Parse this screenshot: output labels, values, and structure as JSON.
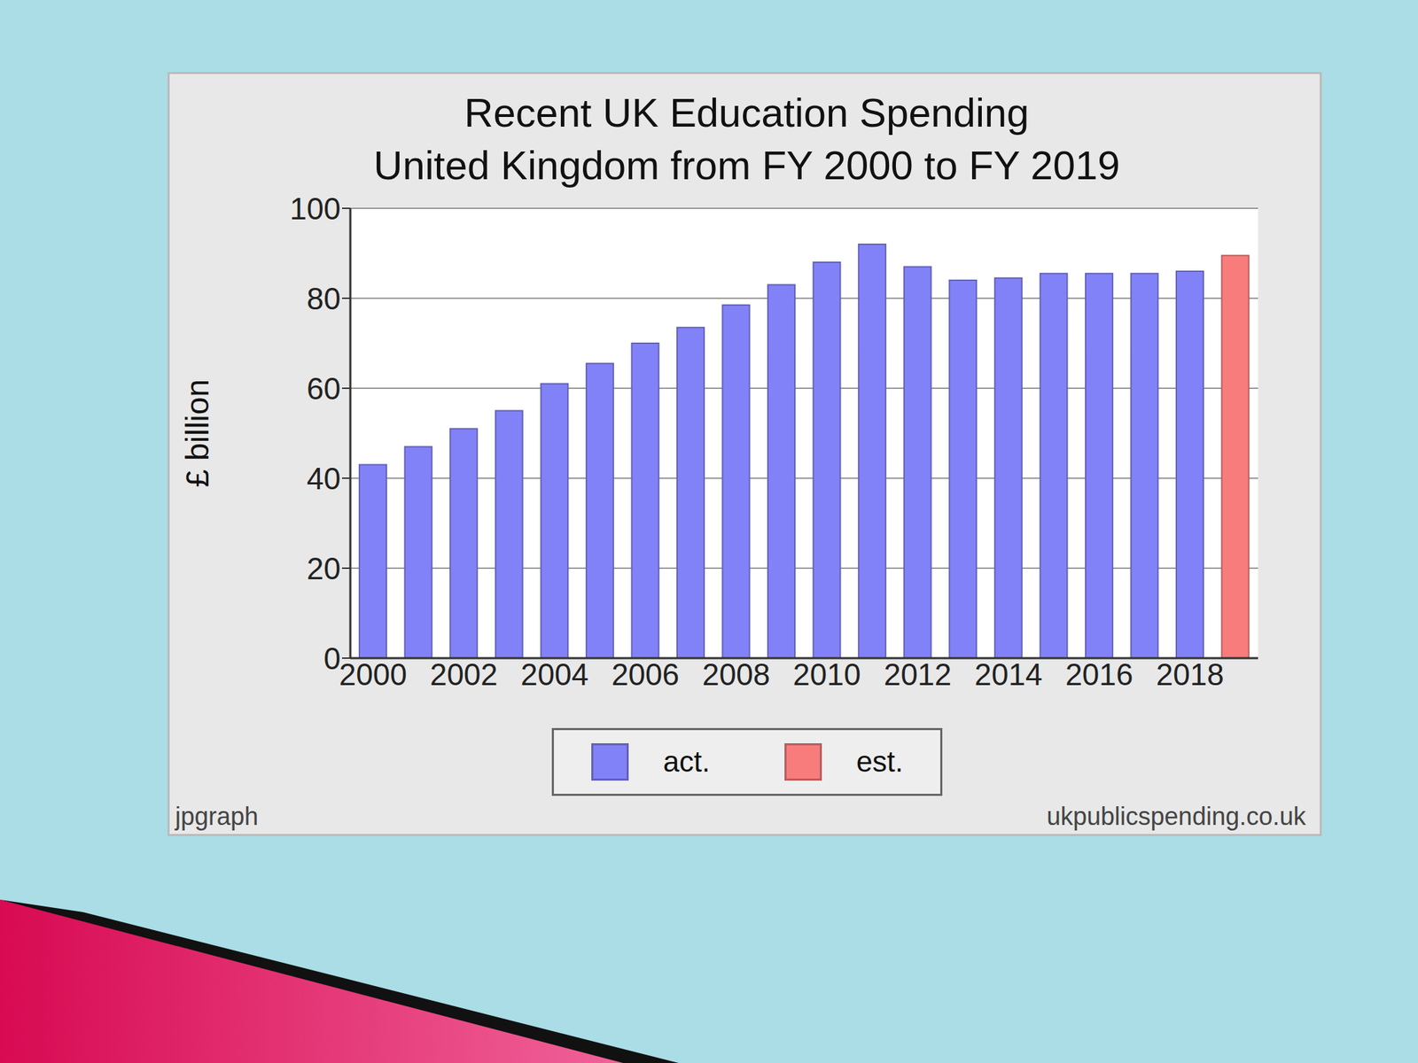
{
  "chart_data": {
    "type": "bar",
    "title": "Recent UK Education Spending",
    "subtitle": "United Kingdom from FY 2000 to FY 2019",
    "y_label": "£ billion",
    "categories": [
      "2000",
      null,
      "2002",
      null,
      "2004",
      null,
      "2006",
      null,
      "2008",
      null,
      "2010",
      null,
      "2012",
      null,
      "2014",
      null,
      "2016",
      null,
      "2018",
      null
    ],
    "series": [
      {
        "name": "act.",
        "color": "#8282f8",
        "values": [
          43,
          47,
          51,
          55,
          61,
          65.5,
          70,
          73.5,
          78.5,
          83,
          88,
          92,
          87,
          84,
          84.5,
          85.5,
          85.5,
          85.5,
          86,
          null
        ]
      },
      {
        "name": "est.",
        "color": "#f87c7c",
        "values": [
          null,
          null,
          null,
          null,
          null,
          null,
          null,
          null,
          null,
          null,
          null,
          null,
          null,
          null,
          null,
          null,
          null,
          null,
          null,
          89.5
        ]
      }
    ],
    "ylim": [
      0,
      100
    ],
    "yticks": [
      0,
      20,
      40,
      60,
      80,
      100
    ],
    "grid": true,
    "legend": "bottom",
    "annotations": [
      "jpgraph",
      "ukpublicspending.co.uk"
    ]
  }
}
